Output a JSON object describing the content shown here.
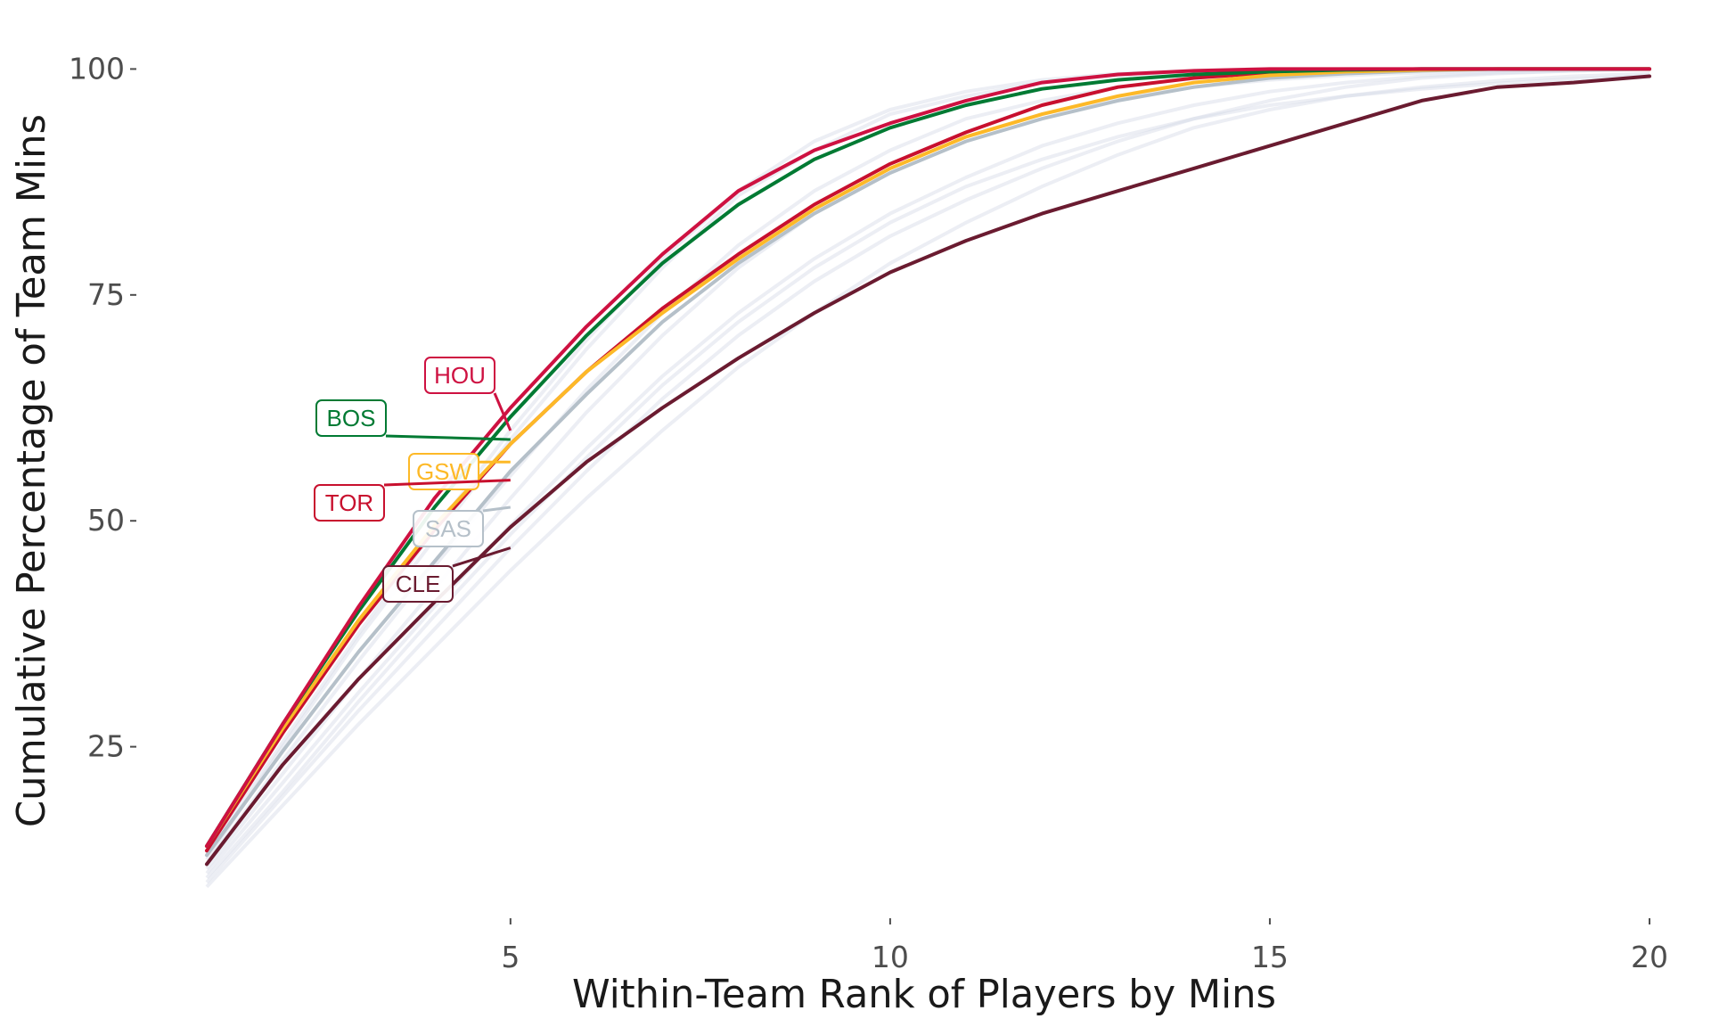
{
  "chart_data": {
    "type": "line",
    "title": "",
    "xlabel": "Within-Team Rank of Players by Mins",
    "ylabel": "Cumulative Percentage of Team Mins",
    "xlim": [
      1,
      20
    ],
    "ylim": [
      7.5,
      103
    ],
    "x_ticks": [
      {
        "value": 5,
        "label": "5"
      },
      {
        "value": 10,
        "label": "10"
      },
      {
        "value": 15,
        "label": "15"
      },
      {
        "value": 20,
        "label": "20"
      }
    ],
    "y_ticks": [
      {
        "value": 25,
        "label": "25"
      },
      {
        "value": 50,
        "label": "50"
      },
      {
        "value": 75,
        "label": "75"
      },
      {
        "value": 100,
        "label": "100"
      }
    ],
    "grid": false,
    "legend": "none",
    "x": [
      1,
      2,
      3,
      4,
      5,
      6,
      7,
      8,
      9,
      10,
      11,
      12,
      13,
      14,
      15,
      16,
      17,
      18,
      19,
      20
    ],
    "background_series_color": "#d4dae6",
    "background_series": [
      [
        12.5,
        25,
        37,
        48,
        59,
        69,
        78,
        86,
        91,
        95,
        97,
        98.5,
        99.3,
        99.7,
        99.9,
        100,
        100,
        100,
        100,
        100
      ],
      [
        12,
        23.5,
        34.5,
        45,
        55,
        64.5,
        73,
        80.5,
        86.5,
        91,
        94.5,
        96.5,
        98,
        99,
        99.5,
        99.8,
        100,
        100,
        100,
        100
      ],
      [
        11,
        21,
        31,
        40.5,
        49.5,
        58,
        66,
        73,
        79,
        84,
        88,
        91.5,
        94,
        96,
        97.5,
        98.5,
        99.2,
        99.6,
        99.8,
        100
      ],
      [
        10,
        19.5,
        29,
        38,
        47,
        55.5,
        63.5,
        70.5,
        76.5,
        81.5,
        85.5,
        89,
        92,
        94.5,
        96.5,
        98,
        99,
        99.5,
        99.8,
        100
      ],
      [
        9.5,
        18.5,
        27.5,
        36,
        44.5,
        52.5,
        60,
        67,
        73,
        78.5,
        83,
        87,
        90.5,
        93.5,
        95.5,
        97,
        98,
        98.7,
        99.2,
        99.5
      ],
      [
        11.5,
        22,
        32.5,
        42.5,
        52.5,
        62,
        70.5,
        78,
        84,
        89,
        92.5,
        95,
        96.8,
        98,
        98.8,
        99.3,
        99.6,
        99.8,
        99.9,
        100
      ],
      [
        13,
        25.5,
        37.5,
        49,
        60,
        70,
        79,
        86.5,
        92,
        95.5,
        97.5,
        98.8,
        99.5,
        99.8,
        100,
        100,
        100,
        100,
        100,
        100
      ],
      [
        10.5,
        20,
        30,
        39.5,
        48.5,
        57,
        65,
        72,
        78,
        83,
        87,
        90,
        92.5,
        94.5,
        96,
        97,
        97.8,
        98.4,
        98.9,
        99.2
      ]
    ],
    "series": [
      {
        "name": "CLE",
        "color": "#6a1b30",
        "values": [
          12,
          23,
          32.5,
          41,
          49.3,
          56.5,
          62.5,
          68,
          73,
          77.5,
          81,
          84,
          86.5,
          89,
          91.5,
          94,
          96.5,
          98,
          98.5,
          99.2
        ]
      },
      {
        "name": "SAS",
        "color": "#b5c0c9",
        "values": [
          13,
          24.5,
          35.5,
          45.5,
          55.5,
          64,
          72,
          78.5,
          84,
          88.5,
          92,
          94.5,
          96.5,
          98,
          99,
          99.5,
          99.8,
          100,
          100,
          100
        ]
      },
      {
        "name": "TOR",
        "color": "#c8102e",
        "values": [
          13.5,
          26.5,
          38.5,
          49,
          58.5,
          66.5,
          73.5,
          79.5,
          85,
          89.5,
          93,
          96,
          98,
          99,
          99.6,
          99.9,
          100,
          100,
          100,
          100
        ]
      },
      {
        "name": "GSW",
        "color": "#fdb927",
        "values": [
          14,
          27,
          39,
          49.5,
          58.5,
          66.5,
          73,
          79,
          84.5,
          89,
          92.5,
          95,
          97,
          98.5,
          99.3,
          99.7,
          99.9,
          100,
          100,
          100
        ]
      },
      {
        "name": "BOS",
        "color": "#007a33",
        "values": [
          14,
          27.5,
          40,
          51.5,
          61.5,
          70.5,
          78.5,
          85,
          90,
          93.5,
          96,
          97.8,
          98.8,
          99.4,
          99.7,
          99.9,
          100,
          100,
          100,
          100
        ]
      },
      {
        "name": "HOU",
        "color": "#ce1141",
        "values": [
          14,
          27.5,
          40.5,
          52.5,
          62.5,
          71.5,
          79.5,
          86.5,
          91,
          94,
          96.5,
          98.5,
          99.4,
          99.8,
          100,
          100,
          100,
          100,
          100,
          100
        ]
      }
    ],
    "annotations": [
      {
        "series": "HOU",
        "label": "HOU",
        "color": "#ce1141",
        "point": {
          "x": 5,
          "y": 60
        }
      },
      {
        "series": "BOS",
        "label": "BOS",
        "color": "#007a33",
        "point": {
          "x": 5,
          "y": 59
        }
      },
      {
        "series": "GSW",
        "label": "GSW",
        "color": "#fdb927",
        "point": {
          "x": 5,
          "y": 56.5
        }
      },
      {
        "series": "TOR",
        "label": "TOR",
        "color": "#c8102e",
        "point": {
          "x": 5,
          "y": 54.5
        }
      },
      {
        "series": "SAS",
        "label": "SAS",
        "color": "#b5c0c9",
        "point": {
          "x": 5,
          "y": 51.5
        }
      },
      {
        "series": "CLE",
        "label": "CLE",
        "color": "#6a1b30",
        "point": {
          "x": 5,
          "y": 47
        }
      }
    ]
  }
}
